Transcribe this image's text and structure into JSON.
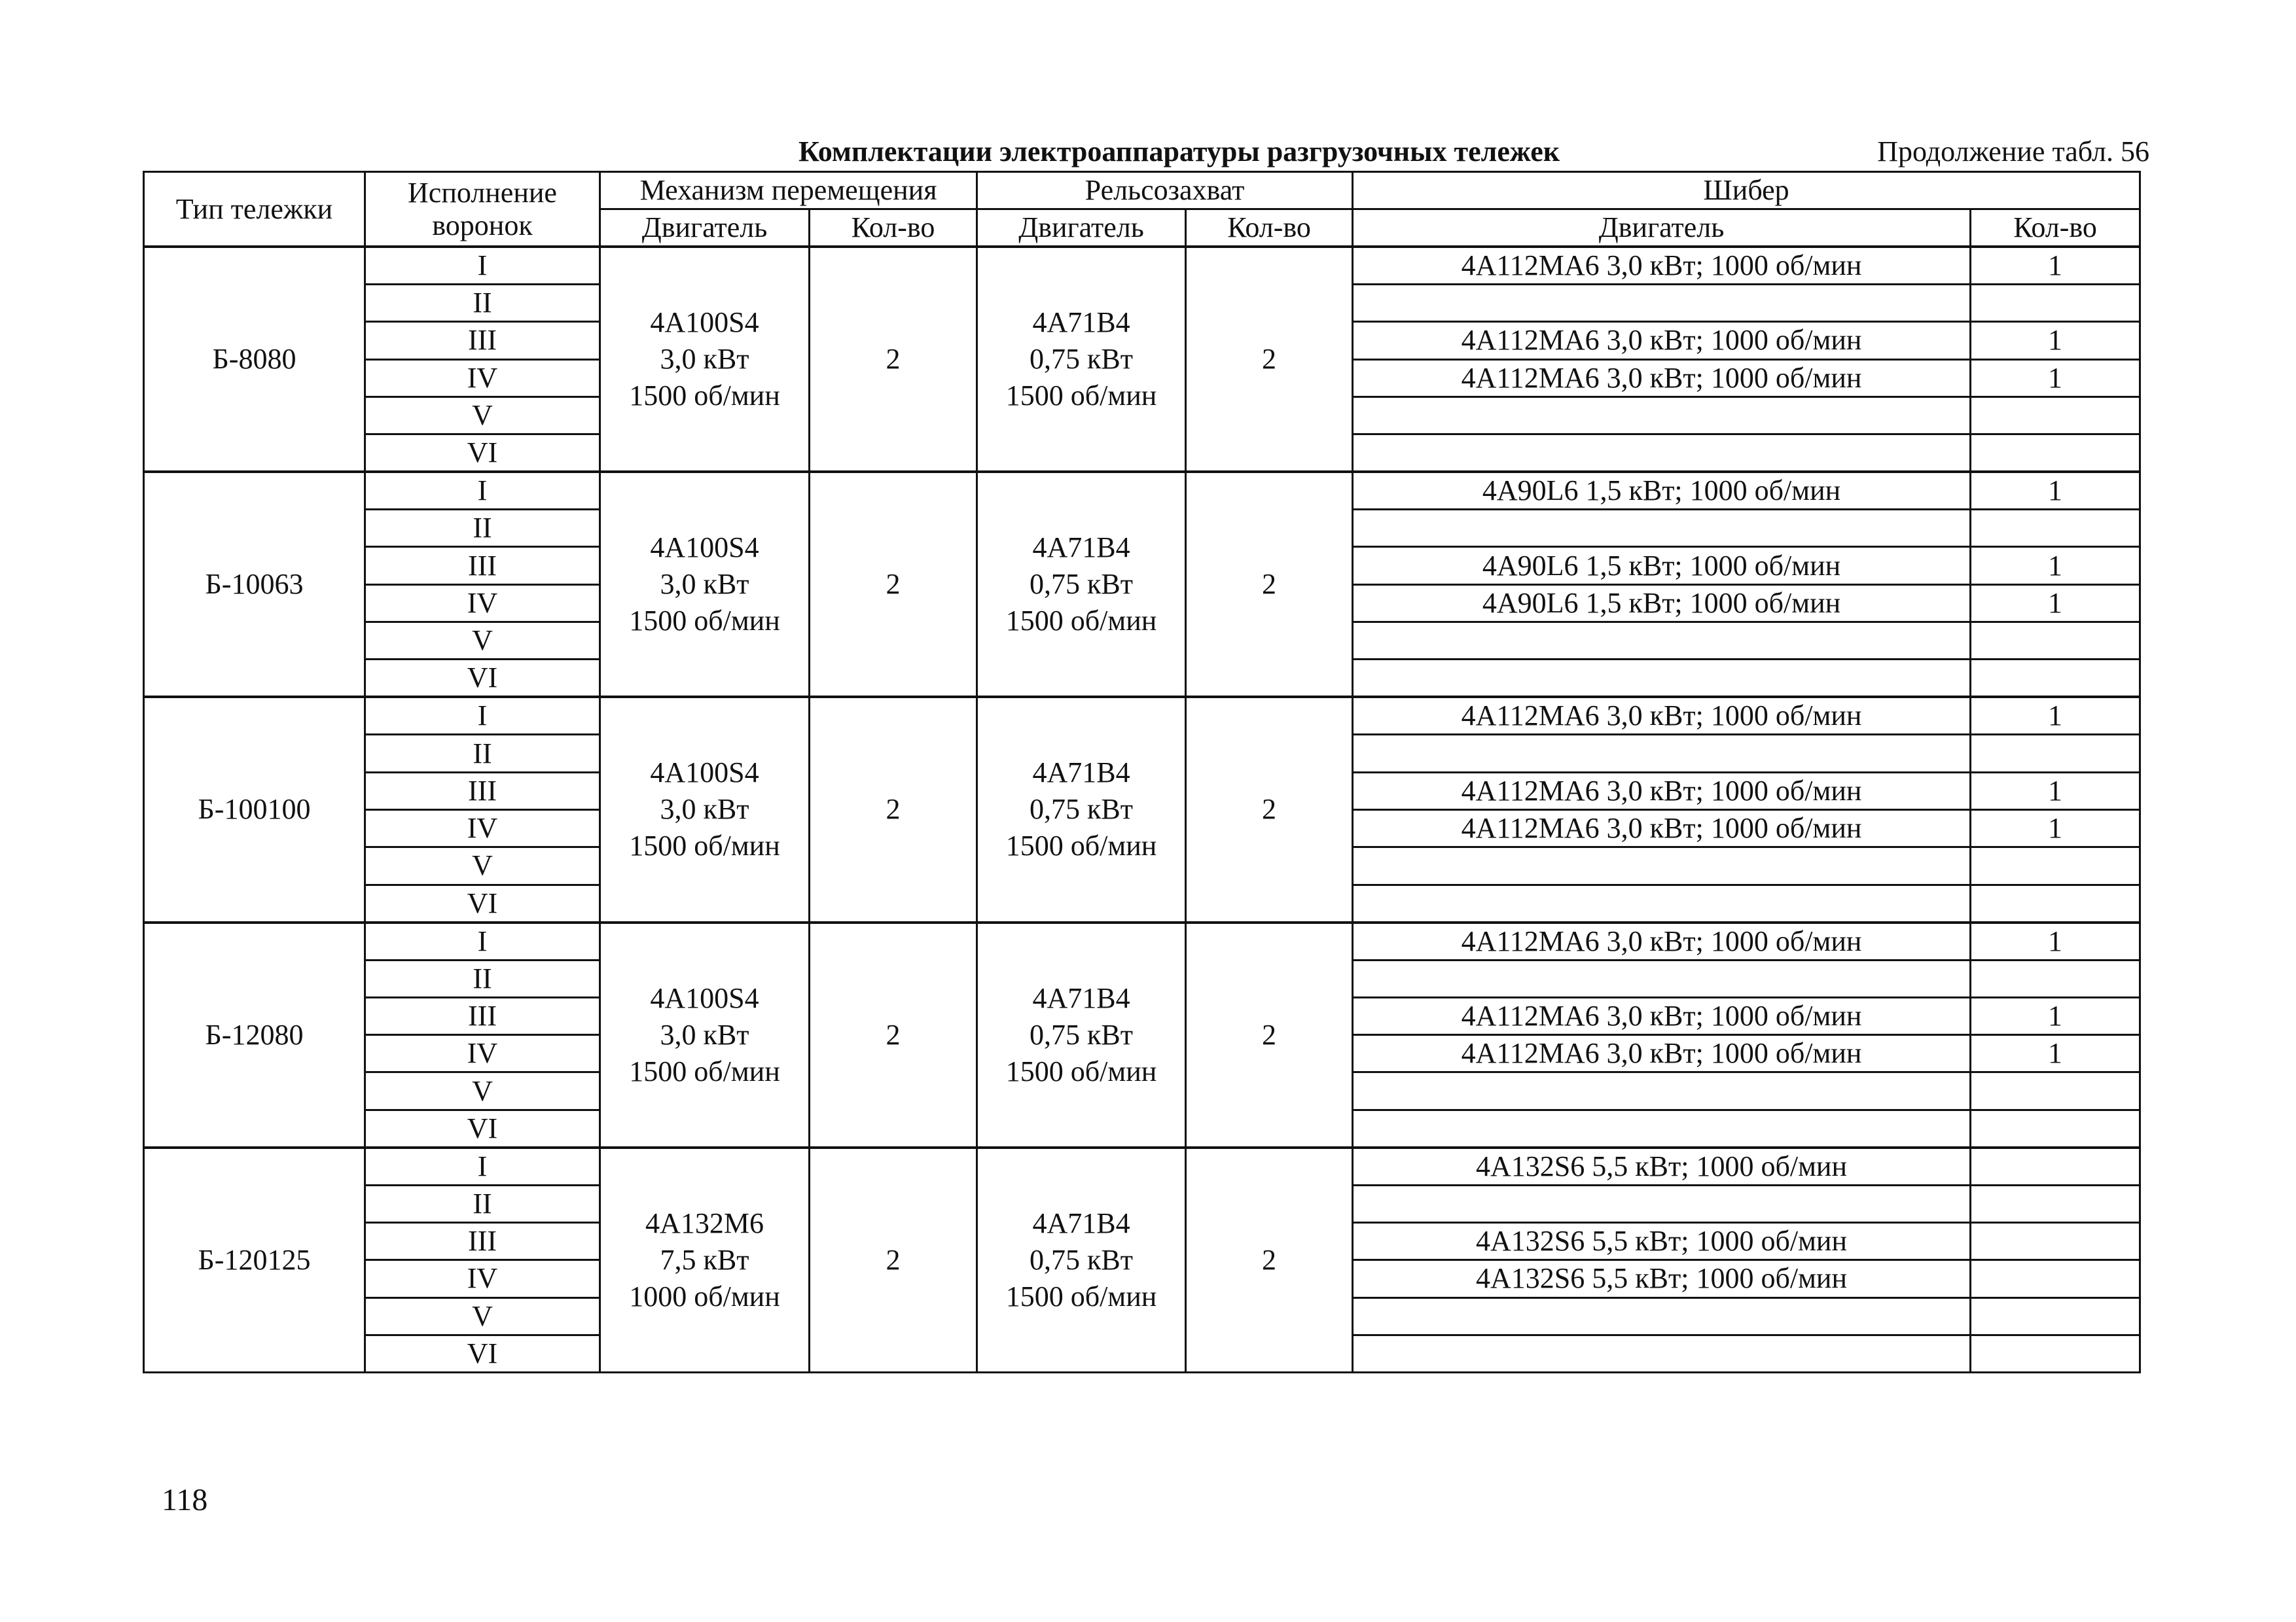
{
  "title": "Комплектации электроаппаратуры разгрузочных тележек",
  "continuation": "Продолжение табл. 56",
  "page_number": "118",
  "headers": {
    "cart_type": "Тип тележки",
    "hopper_version": "Исполнение воронок",
    "travel_mechanism": "Механизм перемещения",
    "rail_clamp": "Рельсозахват",
    "gate": "Шибер",
    "motor": "Двигатель",
    "qty": "Кол-во"
  },
  "groups": [
    {
      "type": "Б-8080",
      "travel_motor": [
        "4A100S4",
        "3,0 кВт",
        "1500 об/мин"
      ],
      "travel_qty": "2",
      "clamp_motor": [
        "4A71B4",
        "0,75 кВт",
        "1500 об/мин"
      ],
      "clamp_qty": "2",
      "rows": [
        {
          "version": "I",
          "gate_motor": "4A112MA6  3,0 кВт; 1000 об/мин",
          "gate_qty": "1"
        },
        {
          "version": "II",
          "gate_motor": "",
          "gate_qty": ""
        },
        {
          "version": "III",
          "gate_motor": "4A112MA6  3,0 кВт; 1000 об/мин",
          "gate_qty": "1"
        },
        {
          "version": "IV",
          "gate_motor": "4A112MA6  3,0 кВт; 1000 об/мин",
          "gate_qty": "1"
        },
        {
          "version": "V",
          "gate_motor": "",
          "gate_qty": ""
        },
        {
          "version": "VI",
          "gate_motor": "",
          "gate_qty": ""
        }
      ]
    },
    {
      "type": "Б-10063",
      "travel_motor": [
        "4A100S4",
        "3,0 кВт",
        "1500 об/мин"
      ],
      "travel_qty": "2",
      "clamp_motor": [
        "4A71B4",
        "0,75 кВт",
        "1500 об/мин"
      ],
      "clamp_qty": "2",
      "rows": [
        {
          "version": "I",
          "gate_motor": "4A90L6  1,5 кВт; 1000 об/мин",
          "gate_qty": "1"
        },
        {
          "version": "II",
          "gate_motor": "",
          "gate_qty": ""
        },
        {
          "version": "III",
          "gate_motor": "4A90L6  1,5 кВт; 1000 об/мин",
          "gate_qty": "1"
        },
        {
          "version": "IV",
          "gate_motor": "4A90L6  1,5 кВт; 1000 об/мин",
          "gate_qty": "1"
        },
        {
          "version": "V",
          "gate_motor": "",
          "gate_qty": ""
        },
        {
          "version": "VI",
          "gate_motor": "",
          "gate_qty": ""
        }
      ]
    },
    {
      "type": "Б-100100",
      "travel_motor": [
        "4A100S4",
        "3,0 кВт",
        "1500 об/мин"
      ],
      "travel_qty": "2",
      "clamp_motor": [
        "4A71B4",
        "0,75 кВт",
        "1500 об/мин"
      ],
      "clamp_qty": "2",
      "rows": [
        {
          "version": "I",
          "gate_motor": "4A112MA6  3,0 кВт; 1000 об/мин",
          "gate_qty": "1"
        },
        {
          "version": "II",
          "gate_motor": "",
          "gate_qty": ""
        },
        {
          "version": "III",
          "gate_motor": "4A112MA6  3,0 кВт; 1000 об/мин",
          "gate_qty": "1"
        },
        {
          "version": "IV",
          "gate_motor": "4A112MA6  3,0 кВт; 1000 об/мин",
          "gate_qty": "1"
        },
        {
          "version": "V",
          "gate_motor": "",
          "gate_qty": ""
        },
        {
          "version": "VI",
          "gate_motor": "",
          "gate_qty": ""
        }
      ]
    },
    {
      "type": "Б-12080",
      "travel_motor": [
        "4A100S4",
        "3,0 кВт",
        "1500 об/мин"
      ],
      "travel_qty": "2",
      "clamp_motor": [
        "4A71B4",
        "0,75 кВт",
        "1500 об/мин"
      ],
      "clamp_qty": "2",
      "rows": [
        {
          "version": "I",
          "gate_motor": "4A112MA6  3,0 кВт; 1000 об/мин",
          "gate_qty": "1"
        },
        {
          "version": "II",
          "gate_motor": "",
          "gate_qty": ""
        },
        {
          "version": "III",
          "gate_motor": "4A112MA6  3,0 кВт; 1000 об/мин",
          "gate_qty": "1"
        },
        {
          "version": "IV",
          "gate_motor": "4A112MA6  3,0 кВт; 1000 об/мин",
          "gate_qty": "1"
        },
        {
          "version": "V",
          "gate_motor": "",
          "gate_qty": ""
        },
        {
          "version": "VI",
          "gate_motor": "",
          "gate_qty": ""
        }
      ]
    },
    {
      "type": "Б-120125",
      "travel_motor": [
        "4A132M6",
        "7,5 кВт",
        "1000 об/мин"
      ],
      "travel_qty": "2",
      "clamp_motor": [
        "4A71B4",
        "0,75 кВт",
        "1500 об/мин"
      ],
      "clamp_qty": "2",
      "rows": [
        {
          "version": "I",
          "gate_motor": "4A132S6  5,5 кВт; 1000 об/мин",
          "gate_qty": ""
        },
        {
          "version": "II",
          "gate_motor": "",
          "gate_qty": ""
        },
        {
          "version": "III",
          "gate_motor": "4A132S6  5,5 кВт; 1000 об/мин",
          "gate_qty": ""
        },
        {
          "version": "IV",
          "gate_motor": "4A132S6  5,5 кВт; 1000 об/мин",
          "gate_qty": ""
        },
        {
          "version": "V",
          "gate_motor": "",
          "gate_qty": ""
        },
        {
          "version": "VI",
          "gate_motor": "",
          "gate_qty": ""
        }
      ]
    }
  ]
}
